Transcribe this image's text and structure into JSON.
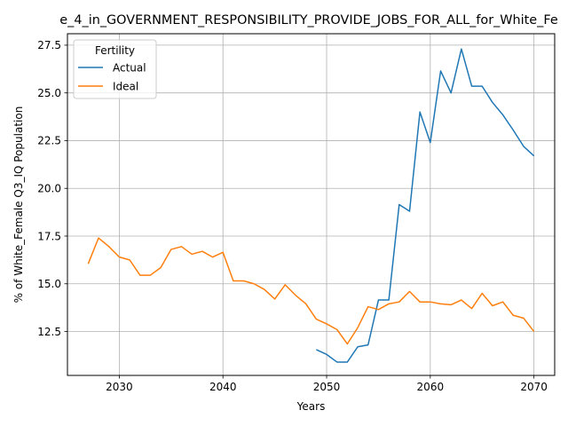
{
  "chart_data": {
    "type": "line",
    "title": "e_4_in_GOVERNMENT_RESPONSIBILITY_PROVIDE_JOBS_FOR_ALL_for_White_Fe",
    "xlabel": "Years",
    "ylabel": "% of White_Female Q3_IQ Population",
    "xlim": [
      2025,
      2072
    ],
    "ylim": [
      10.2,
      28.1
    ],
    "xticks": [
      2030,
      2040,
      2050,
      2060,
      2070
    ],
    "yticks": [
      12.5,
      15.0,
      17.5,
      20.0,
      22.5,
      25.0,
      27.5
    ],
    "ytick_labels": [
      "12.5",
      "15.0",
      "17.5",
      "20.0",
      "22.5",
      "25.0",
      "27.5"
    ],
    "grid": true,
    "legend": {
      "title": "Fertility",
      "placement": "top-left"
    },
    "series": [
      {
        "name": "Actual",
        "color": "#1f77b4",
        "x": [
          2049,
          2050,
          2051,
          2052,
          2053,
          2054,
          2055,
          2056,
          2057,
          2058,
          2059,
          2060,
          2061,
          2062,
          2063,
          2064,
          2065,
          2066,
          2067,
          2068,
          2069,
          2070
        ],
        "y": [
          11.55,
          11.3,
          10.9,
          10.9,
          11.7,
          11.8,
          14.15,
          14.15,
          19.15,
          18.8,
          24.0,
          22.4,
          26.15,
          25.0,
          27.3,
          25.35,
          25.35,
          24.5,
          23.85,
          23.05,
          22.2,
          21.7
        ]
      },
      {
        "name": "Ideal",
        "color": "#ff7f0e",
        "x": [
          2027,
          2028,
          2029,
          2030,
          2031,
          2032,
          2033,
          2034,
          2035,
          2036,
          2037,
          2038,
          2039,
          2040,
          2041,
          2042,
          2043,
          2044,
          2045,
          2046,
          2047,
          2048,
          2049,
          2050,
          2051,
          2052,
          2053,
          2054,
          2055,
          2056,
          2057,
          2058,
          2059,
          2060,
          2061,
          2062,
          2063,
          2064,
          2065,
          2066,
          2067,
          2068,
          2069,
          2070
        ],
        "y": [
          16.05,
          17.4,
          16.95,
          16.4,
          16.25,
          15.45,
          15.45,
          15.85,
          16.8,
          16.95,
          16.55,
          16.7,
          16.4,
          16.65,
          15.15,
          15.15,
          15.0,
          14.7,
          14.2,
          14.95,
          14.4,
          13.95,
          13.15,
          12.9,
          12.6,
          11.85,
          12.7,
          13.8,
          13.65,
          13.95,
          14.05,
          14.6,
          14.05,
          14.05,
          13.95,
          13.9,
          14.15,
          13.7,
          14.5,
          13.85,
          14.05,
          13.35,
          13.2,
          12.5
        ]
      }
    ]
  }
}
